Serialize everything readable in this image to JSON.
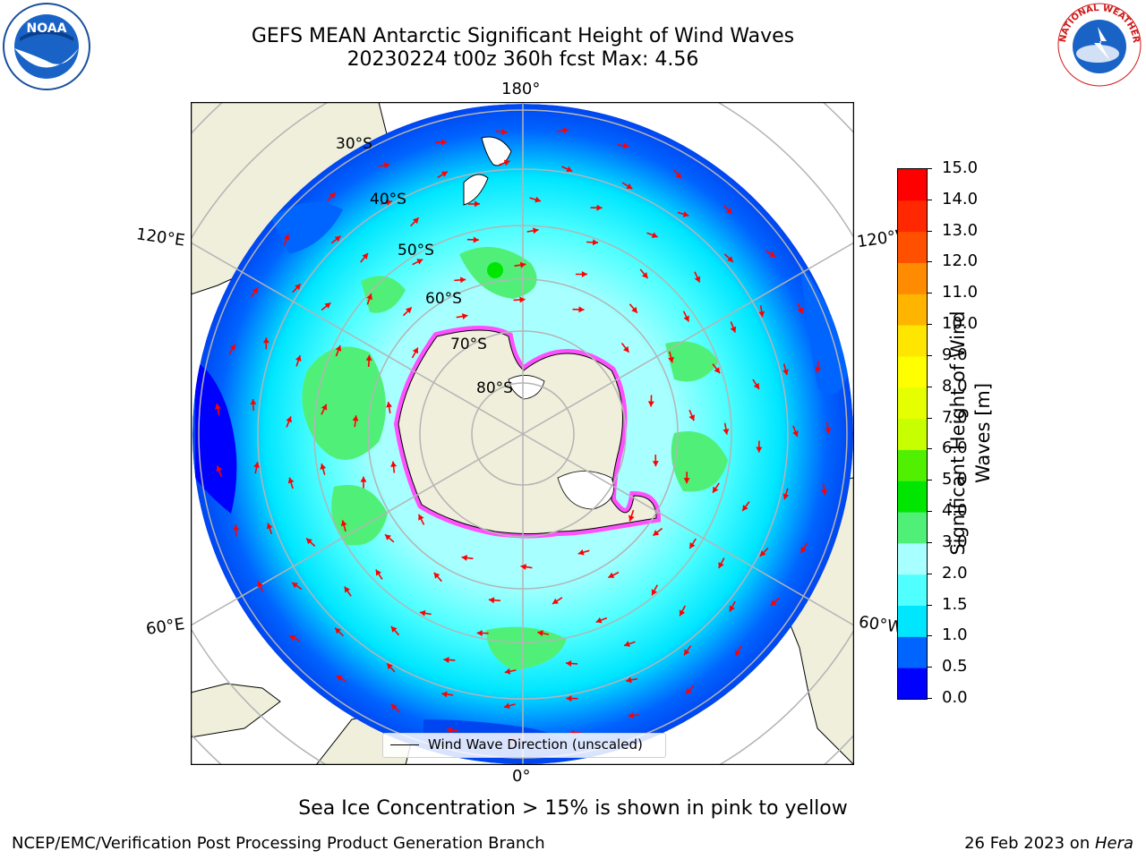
{
  "header": {
    "title_line1": "GEFS MEAN Antarctic Significant Height of Wind Waves",
    "title_line2": "20230224 t00z 360h fcst   Max: 4.56"
  },
  "logos": {
    "left": {
      "name": "noaa-logo",
      "text": "NOAA"
    },
    "right": {
      "name": "national-weather-service-logo",
      "text": "NATIONAL WEATHER SERVICE"
    }
  },
  "map": {
    "projection": "south-polar-stereographic",
    "longitude_labels": {
      "top": "180°",
      "bottom": "0°",
      "left_top": "120°E",
      "left_bottom": "60°E",
      "right_top": "120°W",
      "right_bottom": "60°W"
    },
    "latitude_labels": [
      "30°S",
      "40°S",
      "50°S",
      "60°S",
      "70°S",
      "80°S"
    ],
    "legend": {
      "text": "Wind Wave Direction (unscaled)"
    }
  },
  "colorbar": {
    "label_line1": "Significant Height of Wind",
    "label_line2": "Waves [m]",
    "ticks": [
      "0.0",
      "0.5",
      "1.0",
      "1.5",
      "2.0",
      "3.0",
      "4.0",
      "5.0",
      "6.0",
      "7.0",
      "8.0",
      "9.0",
      "10.0",
      "11.0",
      "12.0",
      "13.0",
      "14.0",
      "15.0"
    ],
    "colors": [
      "#0000ff",
      "#0064ff",
      "#00e6ff",
      "#50ffff",
      "#a8ffff",
      "#50f078",
      "#00e600",
      "#50f000",
      "#c8ff00",
      "#e6ff00",
      "#ffff00",
      "#ffe600",
      "#ffb400",
      "#ff8c00",
      "#ff5000",
      "#ff2800",
      "#ff0000"
    ]
  },
  "subtitle": "Sea Ice Concentration > 15% is shown in pink to yellow",
  "footer": {
    "left": "NCEP/EMC/Verification Post Processing Product Generation Branch",
    "right_prefix": "26 Feb 2023 on ",
    "right_host": "Hera"
  }
}
